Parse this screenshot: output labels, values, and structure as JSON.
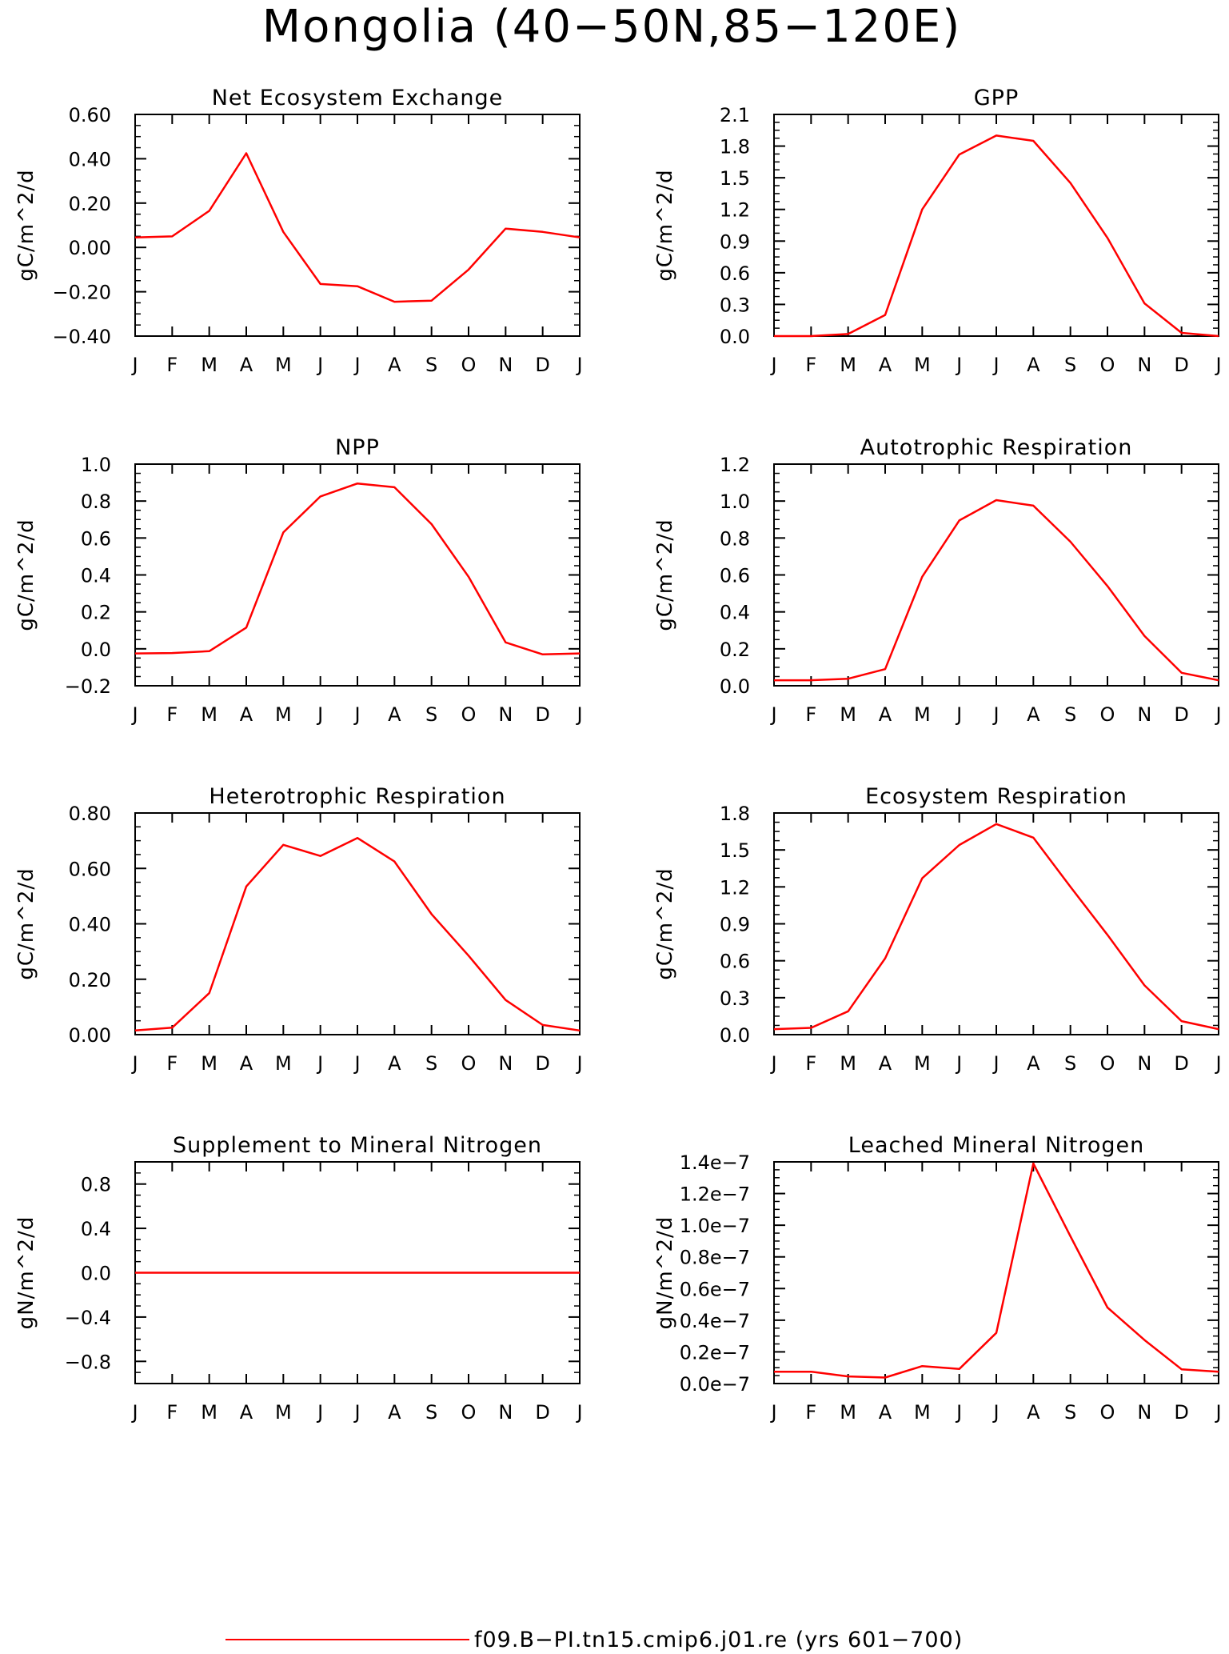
{
  "figure": {
    "title": "Mongolia (40−50N,85−120E)",
    "legend": {
      "label": "f09.B−PI.tn15.cmip6.j01.re (yrs 601−700)",
      "color": "#ff0000",
      "placement": "bottom-center"
    },
    "line_color": "#ff0000"
  },
  "chart_data": [
    {
      "type": "line",
      "title": "Net Ecosystem Exchange",
      "ylabel": "gC/m^2/d",
      "categories": [
        "J",
        "F",
        "M",
        "A",
        "M",
        "J",
        "J",
        "A",
        "S",
        "O",
        "N",
        "D",
        "J"
      ],
      "values": [
        0.045,
        0.05,
        0.165,
        0.425,
        0.07,
        -0.165,
        -0.175,
        -0.245,
        -0.24,
        -0.1,
        0.085,
        0.07,
        0.045
      ],
      "ylim": [
        -0.4,
        0.6
      ],
      "yticks": [
        -0.4,
        -0.2,
        0.0,
        0.2,
        0.4,
        0.6
      ],
      "ytick_labels": [
        "−0.40",
        "−0.20",
        "0.00",
        "0.20",
        "0.40",
        "0.60"
      ],
      "grid": false
    },
    {
      "type": "line",
      "title": "GPP",
      "ylabel": "gC/m^2/d",
      "categories": [
        "J",
        "F",
        "M",
        "A",
        "M",
        "J",
        "J",
        "A",
        "S",
        "O",
        "N",
        "D",
        "J"
      ],
      "values": [
        0.0,
        0.0,
        0.02,
        0.2,
        1.2,
        1.72,
        1.9,
        1.85,
        1.45,
        0.93,
        0.31,
        0.03,
        0.0
      ],
      "ylim": [
        0.0,
        2.1
      ],
      "yticks": [
        0.0,
        0.3,
        0.6,
        0.9,
        1.2,
        1.5,
        1.8,
        2.1
      ],
      "ytick_labels": [
        "0.0",
        "0.3",
        "0.6",
        "0.9",
        "1.2",
        "1.5",
        "1.8",
        "2.1"
      ],
      "grid": false
    },
    {
      "type": "line",
      "title": "NPP",
      "ylabel": "gC/m^2/d",
      "categories": [
        "J",
        "F",
        "M",
        "A",
        "M",
        "J",
        "J",
        "A",
        "S",
        "O",
        "N",
        "D",
        "J"
      ],
      "values": [
        -0.025,
        -0.023,
        -0.013,
        0.115,
        0.63,
        0.825,
        0.895,
        0.875,
        0.675,
        0.39,
        0.035,
        -0.03,
        -0.025
      ],
      "ylim": [
        -0.2,
        1.0
      ],
      "yticks": [
        -0.2,
        0.0,
        0.2,
        0.4,
        0.6,
        0.8,
        1.0
      ],
      "ytick_labels": [
        "−0.2",
        "0.0",
        "0.2",
        "0.4",
        "0.6",
        "0.8",
        "1.0"
      ],
      "grid": false
    },
    {
      "type": "line",
      "title": "Autotrophic Respiration",
      "ylabel": "gC/m^2/d",
      "categories": [
        "J",
        "F",
        "M",
        "A",
        "M",
        "J",
        "J",
        "A",
        "S",
        "O",
        "N",
        "D",
        "J"
      ],
      "values": [
        0.03,
        0.03,
        0.038,
        0.09,
        0.59,
        0.895,
        1.005,
        0.975,
        0.78,
        0.54,
        0.27,
        0.07,
        0.03
      ],
      "ylim": [
        0.0,
        1.2
      ],
      "yticks": [
        0.0,
        0.2,
        0.4,
        0.6,
        0.8,
        1.0,
        1.2
      ],
      "ytick_labels": [
        "0.0",
        "0.2",
        "0.4",
        "0.6",
        "0.8",
        "1.0",
        "1.2"
      ],
      "grid": false
    },
    {
      "type": "line",
      "title": "Heterotrophic Respiration",
      "ylabel": "gC/m^2/d",
      "categories": [
        "J",
        "F",
        "M",
        "A",
        "M",
        "J",
        "J",
        "A",
        "S",
        "O",
        "N",
        "D",
        "J"
      ],
      "values": [
        0.015,
        0.025,
        0.15,
        0.535,
        0.685,
        0.645,
        0.71,
        0.625,
        0.435,
        0.285,
        0.125,
        0.035,
        0.015
      ],
      "ylim": [
        0.0,
        0.8
      ],
      "yticks": [
        0.0,
        0.2,
        0.4,
        0.6,
        0.8
      ],
      "ytick_labels": [
        "0.00",
        "0.20",
        "0.40",
        "0.60",
        "0.80"
      ],
      "grid": false
    },
    {
      "type": "line",
      "title": "Ecosystem Respiration",
      "ylabel": "gC/m^2/d",
      "categories": [
        "J",
        "F",
        "M",
        "A",
        "M",
        "J",
        "J",
        "A",
        "S",
        "O",
        "N",
        "D",
        "J"
      ],
      "values": [
        0.045,
        0.055,
        0.19,
        0.62,
        1.27,
        1.54,
        1.71,
        1.6,
        1.2,
        0.81,
        0.4,
        0.11,
        0.045
      ],
      "ylim": [
        0.0,
        1.8
      ],
      "yticks": [
        0.0,
        0.3,
        0.6,
        0.9,
        1.2,
        1.5,
        1.8
      ],
      "ytick_labels": [
        "0.0",
        "0.3",
        "0.6",
        "0.9",
        "1.2",
        "1.5",
        "1.8"
      ],
      "grid": false
    },
    {
      "type": "line",
      "title": "Supplement to Mineral Nitrogen",
      "ylabel": "gN/m^2/d",
      "categories": [
        "J",
        "F",
        "M",
        "A",
        "M",
        "J",
        "J",
        "A",
        "S",
        "O",
        "N",
        "D",
        "J"
      ],
      "values": [
        0,
        0,
        0,
        0,
        0,
        0,
        0,
        0,
        0,
        0,
        0,
        0,
        0
      ],
      "ylim": [
        -1.0,
        1.0
      ],
      "yticks": [
        -0.8,
        -0.4,
        0.0,
        0.4,
        0.8
      ],
      "ytick_labels": [
        "−0.8",
        "−0.4",
        "0.0",
        "0.4",
        "0.8"
      ],
      "grid": false
    },
    {
      "type": "line",
      "title": "Leached Mineral Nitrogen",
      "ylabel": "gN/m^2/d",
      "categories": [
        "J",
        "F",
        "M",
        "A",
        "M",
        "J",
        "J",
        "A",
        "S",
        "O",
        "N",
        "D",
        "J"
      ],
      "values": [
        7.5e-09,
        7.5e-09,
        4.5e-09,
        3.8e-09,
        1.1e-08,
        9.2e-09,
        3.2e-08,
        1.39e-07,
        9.3e-08,
        4.8e-08,
        2.75e-08,
        9e-09,
        7.5e-09
      ],
      "ylim": [
        0.0,
        1.4e-07
      ],
      "yticks": [
        0.0,
        2e-08,
        4e-08,
        6e-08,
        8e-08,
        1e-07,
        1.2e-07,
        1.4e-07
      ],
      "ytick_labels": [
        "0.0e−7",
        "0.2e−7",
        "0.4e−7",
        "0.6e−7",
        "0.8e−7",
        "1.0e−7",
        "1.2e−7",
        "1.4e−7"
      ],
      "grid": false
    }
  ]
}
